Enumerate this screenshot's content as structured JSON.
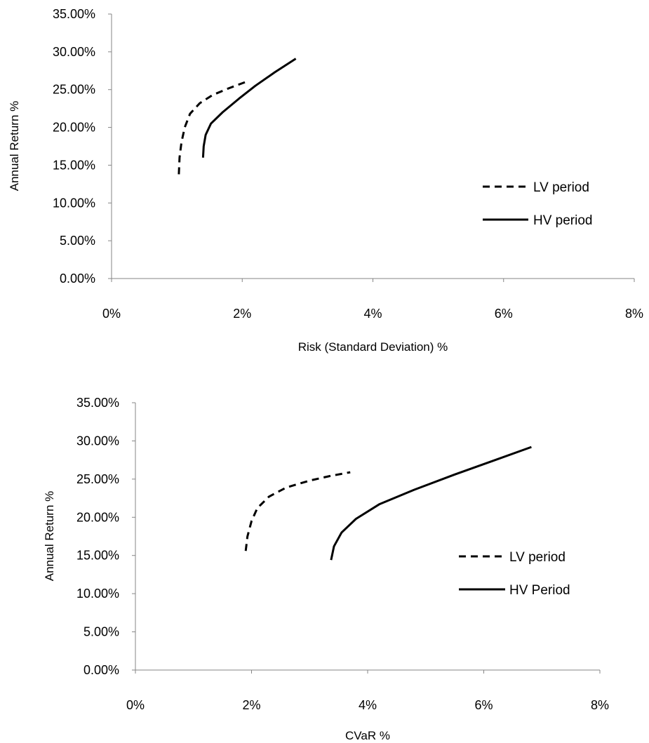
{
  "chart_data": [
    {
      "type": "line",
      "xlabel": "Risk (Standard Deviation) %",
      "ylabel": "Annual Return %",
      "xlim": [
        0,
        8
      ],
      "ylim": [
        0,
        35
      ],
      "x_ticks": [
        "0%",
        "2%",
        "4%",
        "6%",
        "8%"
      ],
      "y_ticks": [
        "0.00%",
        "5.00%",
        "10.00%",
        "15.00%",
        "20.00%",
        "25.00%",
        "30.00%",
        "35.00%"
      ],
      "legend_position": "right",
      "series": [
        {
          "name": "LV period",
          "style": "dashed",
          "color": "#000000",
          "points": [
            [
              1.03,
              13.8
            ],
            [
              1.04,
              16.0
            ],
            [
              1.07,
              18.0
            ],
            [
              1.12,
              20.0
            ],
            [
              1.2,
              21.8
            ],
            [
              1.35,
              23.2
            ],
            [
              1.55,
              24.3
            ],
            [
              1.8,
              25.2
            ],
            [
              2.05,
              26.0
            ]
          ]
        },
        {
          "name": "HV period",
          "style": "solid",
          "color": "#000000",
          "points": [
            [
              1.4,
              16.0
            ],
            [
              1.41,
              17.5
            ],
            [
              1.44,
              19.0
            ],
            [
              1.52,
              20.5
            ],
            [
              1.7,
              22.0
            ],
            [
              1.95,
              23.8
            ],
            [
              2.2,
              25.5
            ],
            [
              2.5,
              27.3
            ],
            [
              2.82,
              29.1
            ]
          ]
        }
      ]
    },
    {
      "type": "line",
      "xlabel": "CVaR %",
      "ylabel": "Annual Return %",
      "xlim": [
        0,
        8
      ],
      "ylim": [
        0,
        35
      ],
      "x_ticks": [
        "0%",
        "2%",
        "4%",
        "6%",
        "8%"
      ],
      "y_ticks": [
        "0.00%",
        "5.00%",
        "10.00%",
        "15.00%",
        "20.00%",
        "25.00%",
        "30.00%",
        "35.00%"
      ],
      "legend_position": "right",
      "series": [
        {
          "name": "LV period",
          "style": "dashed",
          "color": "#000000",
          "points": [
            [
              1.9,
              15.6
            ],
            [
              1.93,
              17.5
            ],
            [
              2.0,
              19.5
            ],
            [
              2.1,
              21.2
            ],
            [
              2.3,
              22.7
            ],
            [
              2.6,
              23.9
            ],
            [
              3.0,
              24.8
            ],
            [
              3.35,
              25.4
            ],
            [
              3.7,
              25.9
            ]
          ]
        },
        {
          "name": "HV Period",
          "style": "solid",
          "color": "#000000",
          "points": [
            [
              3.37,
              14.4
            ],
            [
              3.42,
              16.2
            ],
            [
              3.55,
              18.0
            ],
            [
              3.8,
              19.8
            ],
            [
              4.2,
              21.7
            ],
            [
              4.8,
              23.6
            ],
            [
              5.5,
              25.6
            ],
            [
              6.2,
              27.5
            ],
            [
              6.82,
              29.2
            ]
          ]
        }
      ]
    }
  ]
}
